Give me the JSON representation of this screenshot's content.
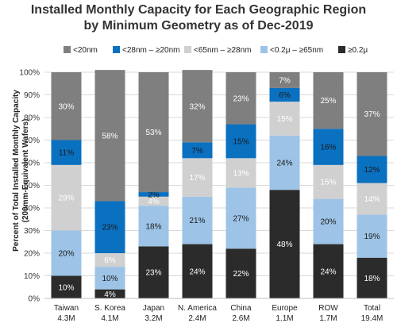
{
  "chart_data": {
    "type": "bar",
    "stacked": true,
    "title": [
      "Installed Monthly Capacity for Each Geographic Region",
      "by Minimum Geometry as of Dec-2019"
    ],
    "ylabel": [
      "Percent of Total Installed Monthly Capacity",
      "(200mm-Equivalent Wafers)"
    ],
    "ylim": [
      0,
      100
    ],
    "y_ticks": [
      "0%",
      "10%",
      "20%",
      "30%",
      "40%",
      "50%",
      "60%",
      "70%",
      "80%",
      "90%",
      "100%"
    ],
    "grid": true,
    "legend_position": "top",
    "categories": [
      "Taiwan",
      "S. Korea",
      "Japan",
      "N. America",
      "China",
      "Europe",
      "ROW",
      "Total"
    ],
    "category_totals": [
      "4.3M",
      "4.1M",
      "3.2M",
      "2.4M",
      "2.6M",
      "1.1M",
      "1.7M",
      "19.4M"
    ],
    "series": [
      {
        "name": "≥0.2μ",
        "color": "#2b2b2b",
        "text_color": "#ffffff",
        "values": [
          10,
          4,
          23,
          24,
          22,
          48,
          24,
          18
        ],
        "labels": [
          "10%",
          "4%",
          "23%",
          "24%",
          "22%",
          "48%",
          "24%",
          "18%"
        ]
      },
      {
        "name": "<0.2μ – ≥65nm",
        "color": "#9dc3e6",
        "text_color": "#1a1a1a",
        "values": [
          20,
          10,
          18,
          21,
          27,
          24,
          20,
          19
        ],
        "labels": [
          "20%",
          "10%",
          "18%",
          "21%",
          "27%",
          "24%",
          "20%",
          "19%"
        ]
      },
      {
        "name": "<65nm – ≥28nm",
        "color": "#d0d0d0",
        "text_color": "#ffffff",
        "values": [
          29,
          6,
          4,
          17,
          13,
          15,
          15,
          14
        ],
        "labels": [
          "29%",
          "6%",
          "4%",
          "17%",
          "13%",
          "15%",
          "15%",
          "14%"
        ]
      },
      {
        "name": "<28nm – ≥20nm",
        "color": "#0a70c0",
        "text_color": "#1a1a1a",
        "values": [
          11,
          23,
          2,
          7,
          15,
          6,
          16,
          12
        ],
        "labels": [
          "11%",
          "23%",
          "2%",
          "7%",
          "15%",
          "6%",
          "16%",
          "12%"
        ]
      },
      {
        "name": "<20nm",
        "color": "#7f7f7f",
        "text_color": "#ffffff",
        "values": [
          30,
          58,
          53,
          32,
          23,
          7,
          25,
          37
        ],
        "labels": [
          "30%",
          "58%",
          "53%",
          "32%",
          "23%",
          "7%",
          "25%",
          "37%"
        ]
      }
    ],
    "legend_order": [
      "<20nm",
      "<28nm – ≥20nm",
      "<65nm – ≥28nm",
      "<0.2μ – ≥65nm",
      "≥0.2μ"
    ]
  }
}
